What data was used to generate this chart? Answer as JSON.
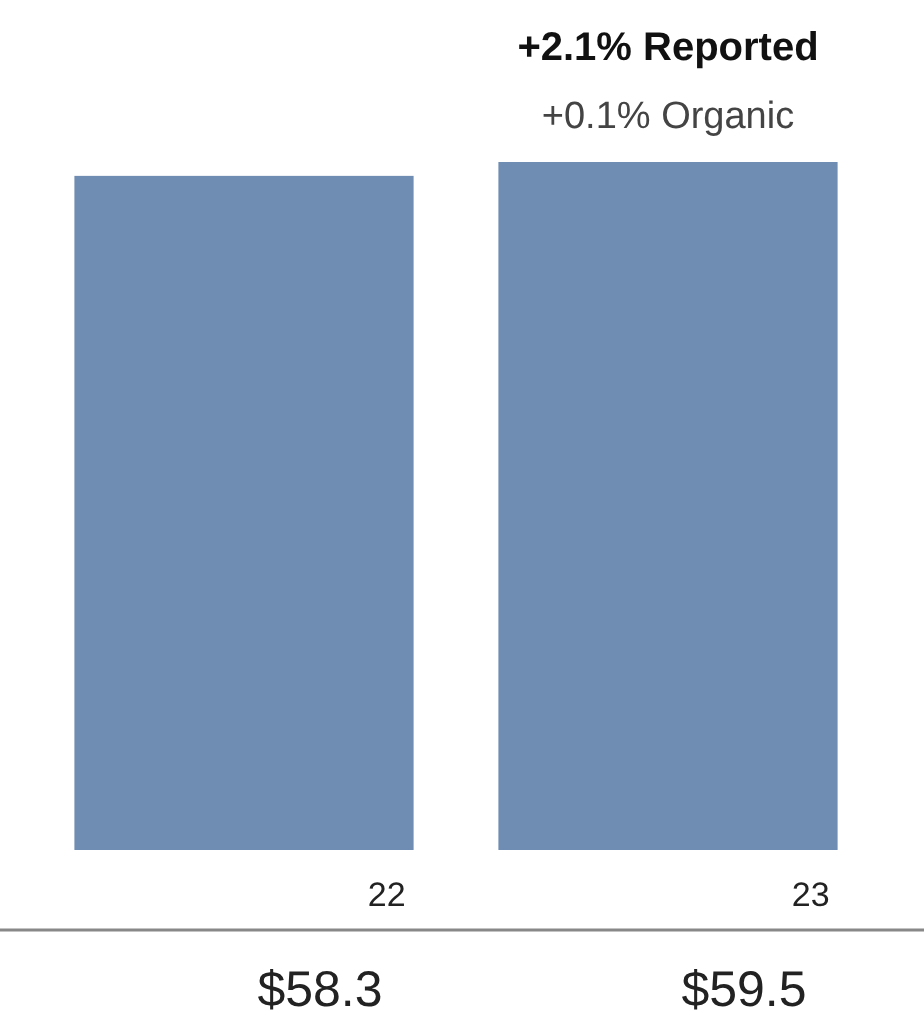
{
  "chart_data": {
    "type": "bar",
    "categories": [
      "22",
      "23"
    ],
    "values": [
      58.3,
      59.5
    ],
    "value_labels": [
      "$58.3",
      "$59.5"
    ],
    "color": "#6f8db2",
    "annotations": [
      "+2.1% Reported",
      "+0.1% Organic"
    ]
  }
}
